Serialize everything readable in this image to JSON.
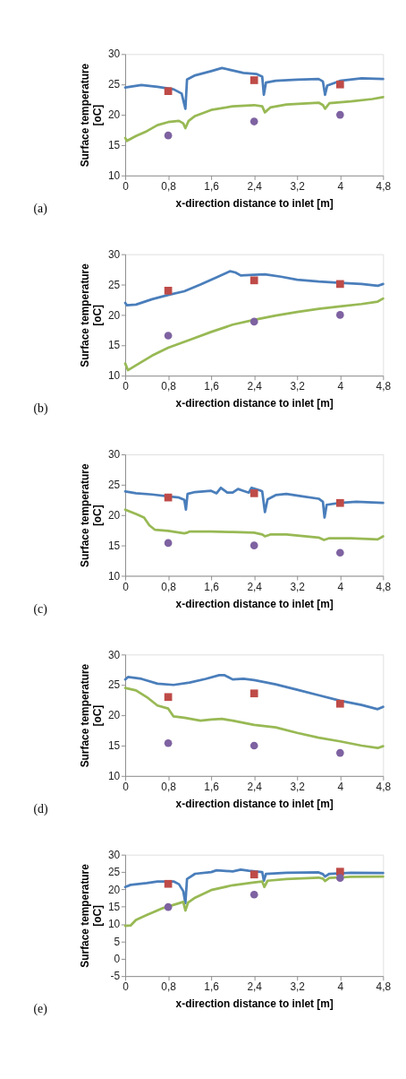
{
  "chart_data": [
    {
      "type": "line",
      "xlabel": "x-direction distance to inlet [m]",
      "ylabel": "Surface temperature\n[oC]",
      "annotations": [
        "(a)"
      ],
      "xlim": [
        0,
        4.8
      ],
      "xticks": [
        {
          "value": 0,
          "label": "0"
        },
        {
          "value": 0.8,
          "label": "0,8"
        },
        {
          "value": 1.6,
          "label": "1,6"
        },
        {
          "value": 2.4,
          "label": "2,4"
        },
        {
          "value": 3.2,
          "label": "3,2"
        },
        {
          "value": 4,
          "label": "4"
        },
        {
          "value": 4.8,
          "label": "4,8"
        }
      ],
      "ylim": [
        10,
        30
      ],
      "yticks": [
        10,
        15,
        20,
        25,
        30
      ],
      "grid": false,
      "series": [
        {
          "marker": "none",
          "color": "#4a7ebb",
          "x": [
            0,
            0.3,
            0.6,
            0.9,
            1.05,
            1.12,
            1.15,
            1.3,
            1.6,
            1.8,
            2.0,
            2.2,
            2.45,
            2.55,
            2.58,
            2.62,
            2.8,
            3.2,
            3.6,
            3.68,
            3.72,
            3.76,
            4.0,
            4.4,
            4.8
          ],
          "values": [
            24.5,
            24.9,
            24.6,
            24.2,
            23.5,
            21.0,
            25.8,
            26.5,
            27.2,
            27.7,
            27.3,
            26.9,
            26.7,
            26.3,
            23.3,
            25.3,
            25.6,
            25.8,
            25.9,
            25.5,
            23.3,
            24.8,
            25.6,
            26.0,
            25.9
          ]
        },
        {
          "marker": "none",
          "color": "#98b954",
          "x": [
            0,
            0.03,
            0.2,
            0.4,
            0.6,
            0.8,
            1.0,
            1.08,
            1.12,
            1.18,
            1.3,
            1.6,
            2.0,
            2.4,
            2.55,
            2.6,
            2.7,
            3.0,
            3.6,
            3.68,
            3.72,
            3.8,
            4.2,
            4.6,
            4.8
          ],
          "values": [
            16.2,
            15.7,
            16.5,
            17.3,
            18.3,
            18.8,
            19.0,
            18.6,
            17.8,
            19.0,
            19.8,
            20.8,
            21.4,
            21.6,
            21.4,
            20.4,
            21.2,
            21.7,
            22.0,
            21.6,
            21.0,
            21.9,
            22.2,
            22.6,
            22.9
          ]
        },
        {
          "type": "scatter",
          "marker": "square",
          "color": "#be4b48",
          "x": [
            0.8,
            2.4,
            4.0
          ],
          "values": [
            23.9,
            25.7,
            25.0
          ]
        },
        {
          "type": "scatter",
          "marker": "circle",
          "color": "#7e62a1",
          "x": [
            0.8,
            2.4,
            4.0
          ],
          "values": [
            16.6,
            18.9,
            20.0
          ]
        }
      ]
    },
    {
      "type": "line",
      "xlabel": "x-direction distance to inlet [m]",
      "ylabel": "Surface temperature\n[oC]",
      "annotations": [
        "(b)"
      ],
      "xlim": [
        0,
        4.8
      ],
      "xticks": [
        {
          "value": 0,
          "label": "0"
        },
        {
          "value": 0.8,
          "label": "0,8"
        },
        {
          "value": 1.6,
          "label": "1,6"
        },
        {
          "value": 2.4,
          "label": "2,4"
        },
        {
          "value": 3.2,
          "label": "3,2"
        },
        {
          "value": 4,
          "label": "4"
        },
        {
          "value": 4.8,
          "label": "4,8"
        }
      ],
      "ylim": [
        10,
        30
      ],
      "yticks": [
        10,
        15,
        20,
        25,
        30
      ],
      "grid": false,
      "series": [
        {
          "marker": "none",
          "color": "#4a7ebb",
          "x": [
            0,
            0.03,
            0.2,
            0.5,
            0.8,
            1.1,
            1.4,
            1.7,
            1.95,
            2.05,
            2.15,
            2.4,
            2.6,
            2.9,
            3.2,
            3.6,
            4.0,
            4.4,
            4.7,
            4.8
          ],
          "values": [
            22.0,
            21.6,
            21.7,
            22.6,
            23.3,
            23.9,
            25.0,
            26.2,
            27.2,
            27.0,
            26.5,
            26.6,
            26.7,
            26.3,
            25.8,
            25.5,
            25.3,
            25.1,
            24.8,
            25.1
          ]
        },
        {
          "marker": "none",
          "color": "#98b954",
          "x": [
            0,
            0.05,
            0.2,
            0.5,
            0.8,
            1.2,
            1.6,
            2.0,
            2.4,
            2.8,
            3.2,
            3.6,
            4.0,
            4.4,
            4.7,
            4.8
          ],
          "values": [
            12.0,
            10.9,
            11.7,
            13.3,
            14.6,
            15.9,
            17.2,
            18.4,
            19.2,
            19.9,
            20.5,
            21.0,
            21.4,
            21.8,
            22.2,
            22.7
          ]
        },
        {
          "type": "scatter",
          "marker": "square",
          "color": "#be4b48",
          "x": [
            0.8,
            2.4,
            4.0
          ],
          "values": [
            24.0,
            25.7,
            25.1
          ]
        },
        {
          "type": "scatter",
          "marker": "circle",
          "color": "#7e62a1",
          "x": [
            0.8,
            2.4,
            4.0
          ],
          "values": [
            16.6,
            18.9,
            20.0
          ]
        }
      ]
    },
    {
      "type": "line",
      "xlabel": "x-direction distance to inlet [m]",
      "ylabel": "Surface temperature\n[oC]",
      "annotations": [
        "(c)"
      ],
      "xlim": [
        0,
        4.8
      ],
      "xticks": [
        {
          "value": 0,
          "label": "0"
        },
        {
          "value": 0.8,
          "label": "0,8"
        },
        {
          "value": 1.6,
          "label": "1,6"
        },
        {
          "value": 2.4,
          "label": "2,4"
        },
        {
          "value": 3.2,
          "label": "3,2"
        },
        {
          "value": 4,
          "label": "4"
        },
        {
          "value": 4.8,
          "label": "4,8"
        }
      ],
      "ylim": [
        10,
        30
      ],
      "yticks": [
        10,
        15,
        20,
        25,
        30
      ],
      "grid": false,
      "series": [
        {
          "marker": "none",
          "color": "#4a7ebb",
          "x": [
            0,
            0.2,
            0.5,
            0.8,
            1.0,
            1.1,
            1.13,
            1.16,
            1.3,
            1.6,
            1.7,
            1.78,
            1.9,
            2.0,
            2.1,
            2.2,
            2.3,
            2.35,
            2.5,
            2.55,
            2.6,
            2.65,
            2.8,
            3.0,
            3.3,
            3.6,
            3.68,
            3.71,
            3.75,
            4.0,
            4.3,
            4.8
          ],
          "values": [
            23.9,
            23.6,
            23.4,
            23.1,
            22.9,
            22.5,
            20.9,
            23.5,
            23.8,
            24.0,
            23.6,
            24.5,
            23.7,
            23.7,
            24.3,
            24.0,
            23.7,
            24.5,
            24.1,
            23.9,
            20.5,
            22.6,
            23.3,
            23.5,
            23.1,
            22.7,
            22.2,
            19.6,
            21.7,
            22.0,
            22.2,
            22.0
          ]
        },
        {
          "marker": "none",
          "color": "#98b954",
          "x": [
            0,
            0.2,
            0.35,
            0.45,
            0.55,
            0.8,
            1.1,
            1.15,
            1.2,
            1.6,
            2.0,
            2.4,
            2.55,
            2.6,
            2.7,
            3.0,
            3.6,
            3.7,
            3.8,
            4.2,
            4.7,
            4.8
          ],
          "values": [
            20.9,
            20.2,
            19.6,
            18.3,
            17.6,
            17.4,
            17.0,
            17.1,
            17.3,
            17.3,
            17.2,
            17.1,
            16.8,
            16.5,
            16.8,
            16.8,
            16.3,
            15.9,
            16.2,
            16.2,
            16.0,
            16.5
          ]
        },
        {
          "type": "scatter",
          "marker": "square",
          "color": "#be4b48",
          "x": [
            0.8,
            2.4,
            4.0
          ],
          "values": [
            22.9,
            23.6,
            22.0
          ]
        },
        {
          "type": "scatter",
          "marker": "circle",
          "color": "#7e62a1",
          "x": [
            0.8,
            2.4,
            4.0
          ],
          "values": [
            15.4,
            15.0,
            13.8
          ]
        }
      ]
    },
    {
      "type": "line",
      "xlabel": "x-direction distance to inlet [m]",
      "ylabel": "Surface temperature\n[oC]",
      "annotations": [
        "(d)"
      ],
      "xlim": [
        0,
        4.8
      ],
      "xticks": [
        {
          "value": 0,
          "label": "0"
        },
        {
          "value": 0.8,
          "label": "0,8"
        },
        {
          "value": 1.6,
          "label": "1,6"
        },
        {
          "value": 2.4,
          "label": "2,4"
        },
        {
          "value": 3.2,
          "label": "3,2"
        },
        {
          "value": 4,
          "label": "4"
        },
        {
          "value": 4.8,
          "label": "4,8"
        }
      ],
      "ylim": [
        10,
        30
      ],
      "yticks": [
        10,
        15,
        20,
        25,
        30
      ],
      "grid": false,
      "series": [
        {
          "marker": "none",
          "color": "#4a7ebb",
          "x": [
            0,
            0.05,
            0.3,
            0.6,
            0.9,
            1.2,
            1.5,
            1.75,
            1.85,
            2.0,
            2.2,
            2.4,
            2.8,
            3.2,
            3.6,
            4.0,
            4.4,
            4.7,
            4.8
          ],
          "values": [
            25.9,
            26.3,
            26.0,
            25.2,
            25.0,
            25.4,
            26.0,
            26.6,
            26.6,
            25.9,
            26.0,
            25.8,
            25.1,
            24.2,
            23.3,
            22.4,
            21.7,
            21.0,
            21.4
          ]
        },
        {
          "marker": "none",
          "color": "#98b954",
          "x": [
            0,
            0.2,
            0.4,
            0.6,
            0.8,
            0.9,
            1.1,
            1.4,
            1.6,
            1.8,
            2.0,
            2.4,
            2.8,
            3.2,
            3.6,
            4.0,
            4.4,
            4.7,
            4.8
          ],
          "values": [
            24.5,
            24.1,
            23.0,
            21.6,
            21.1,
            19.8,
            19.6,
            19.1,
            19.3,
            19.4,
            19.1,
            18.4,
            18.0,
            17.1,
            16.3,
            15.7,
            15.0,
            14.6,
            14.9
          ]
        },
        {
          "type": "scatter",
          "marker": "square",
          "color": "#be4b48",
          "x": [
            0.8,
            2.4,
            4.0
          ],
          "values": [
            23.0,
            23.6,
            21.9
          ]
        },
        {
          "type": "scatter",
          "marker": "circle",
          "color": "#7e62a1",
          "x": [
            0.8,
            2.4,
            4.0
          ],
          "values": [
            15.4,
            15.0,
            13.8
          ]
        }
      ]
    },
    {
      "type": "line",
      "xlabel": "x-direction distance to inlet [m]",
      "ylabel": "Surface temperature\n[oC]",
      "annotations": [
        "(e)"
      ],
      "xlim": [
        0,
        4.8
      ],
      "xticks": [
        {
          "value": 0,
          "label": "0"
        },
        {
          "value": 0.8,
          "label": "0,8"
        },
        {
          "value": 1.6,
          "label": "1,6"
        },
        {
          "value": 2.4,
          "label": "2,4"
        },
        {
          "value": 3.2,
          "label": "3,2"
        },
        {
          "value": 4,
          "label": "4"
        },
        {
          "value": 4.8,
          "label": "4,8"
        }
      ],
      "ylim": [
        -5,
        30
      ],
      "yticks": [
        -5,
        0,
        5,
        10,
        15,
        20,
        25,
        30
      ],
      "grid": false,
      "series": [
        {
          "marker": "none",
          "color": "#4a7ebb",
          "x": [
            0,
            0.1,
            0.4,
            0.6,
            0.9,
            1.0,
            1.08,
            1.12,
            1.15,
            1.3,
            1.6,
            1.7,
            2.0,
            2.15,
            2.3,
            2.55,
            2.58,
            2.62,
            3.0,
            3.6,
            3.68,
            3.72,
            3.8,
            4.2,
            4.8
          ],
          "values": [
            20.7,
            21.3,
            21.8,
            22.3,
            22.3,
            21.5,
            19.5,
            16.0,
            23.0,
            24.5,
            25.0,
            25.5,
            25.2,
            25.7,
            25.4,
            25.0,
            22.5,
            24.5,
            24.8,
            24.9,
            24.4,
            23.7,
            24.5,
            24.8,
            24.7
          ]
        },
        {
          "marker": "none",
          "color": "#98b954",
          "x": [
            0,
            0.1,
            0.2,
            0.4,
            0.7,
            1.0,
            1.08,
            1.12,
            1.17,
            1.3,
            1.6,
            2.0,
            2.4,
            2.55,
            2.59,
            2.65,
            3.0,
            3.6,
            3.68,
            3.72,
            3.8,
            4.2,
            4.8
          ],
          "values": [
            9.5,
            9.6,
            11.2,
            12.6,
            14.6,
            16.0,
            16.4,
            13.9,
            16.2,
            17.6,
            19.8,
            21.2,
            22.0,
            22.3,
            20.7,
            22.5,
            23.0,
            23.4,
            23.1,
            22.4,
            23.3,
            23.6,
            23.7
          ]
        },
        {
          "type": "scatter",
          "marker": "square",
          "color": "#be4b48",
          "x": [
            0.8,
            2.4,
            4.0
          ],
          "values": [
            21.6,
            24.3,
            25.1
          ]
        },
        {
          "type": "scatter",
          "marker": "circle",
          "color": "#7e62a1",
          "x": [
            0.8,
            2.4,
            4.0
          ],
          "values": [
            14.9,
            18.5,
            23.3
          ]
        }
      ]
    }
  ]
}
